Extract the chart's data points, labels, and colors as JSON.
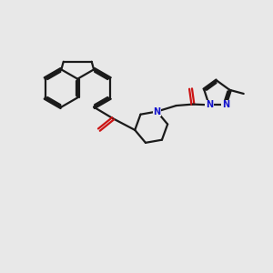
{
  "bg_color": "#e8e8e8",
  "bond_color": "#1a1a1a",
  "nitrogen_color": "#1414cc",
  "oxygen_color": "#cc1414",
  "lw": 1.6,
  "figsize": [
    3.0,
    3.0
  ],
  "dpi": 100,
  "xlim": [
    0,
    10
  ],
  "ylim": [
    0,
    10
  ]
}
